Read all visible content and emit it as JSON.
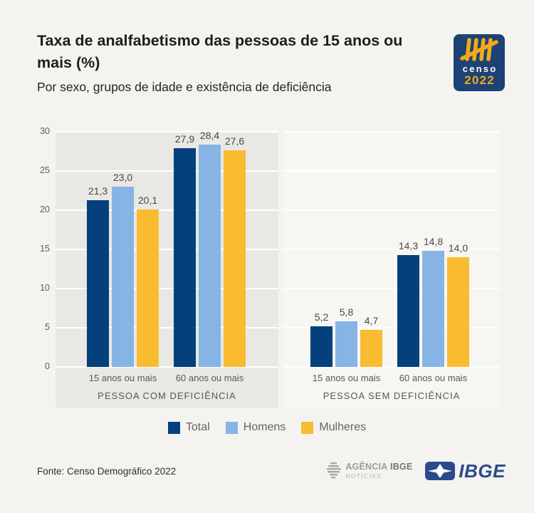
{
  "header": {
    "title": "Taxa de analfabetismo das pessoas de 15 anos ou mais (%)",
    "subtitle": "Por sexo, grupos de idade e existência de deficiência",
    "censo_logo": {
      "brand": "censo",
      "year": "2022"
    }
  },
  "chart_data": {
    "type": "bar",
    "title": "Taxa de analfabetismo das pessoas de 15 anos ou mais (%)",
    "subtitle": "Por sexo, grupos de idade e existência de deficiência",
    "unit": "%",
    "ylim": [
      0,
      30
    ],
    "yticks": [
      0,
      5,
      10,
      15,
      20,
      25,
      30
    ],
    "grid": true,
    "decimal_separator": ",",
    "legend_position": "bottom",
    "series_names": [
      "Total",
      "Homens",
      "Mulheres"
    ],
    "series_colors": [
      "#04407c",
      "#86b4e4",
      "#f9bc30"
    ],
    "panels": [
      {
        "label": "PESSOA COM DEFICIÊNCIA",
        "highlight": true,
        "categories": [
          "15 anos ou mais",
          "60 anos ou mais"
        ],
        "series": [
          {
            "name": "Total",
            "values": [
              21.3,
              27.9
            ]
          },
          {
            "name": "Homens",
            "values": [
              23.0,
              28.4
            ]
          },
          {
            "name": "Mulheres",
            "values": [
              20.1,
              27.6
            ]
          }
        ]
      },
      {
        "label": "PESSOA SEM DEFICIÊNCIA",
        "highlight": false,
        "categories": [
          "15 anos ou mais",
          "60 anos ou mais"
        ],
        "series": [
          {
            "name": "Total",
            "values": [
              5.2,
              14.3
            ]
          },
          {
            "name": "Homens",
            "values": [
              5.8,
              14.8
            ]
          },
          {
            "name": "Mulheres",
            "values": [
              4.7,
              14.0
            ]
          }
        ]
      }
    ]
  },
  "footer": {
    "source": "Fonte: Censo Demográfico 2022",
    "agencia_logo": {
      "title_regular": "AGÊNCIA",
      "title_bold": "IBGE",
      "subtitle": "NOTÍCIAS"
    },
    "ibge_logo_text": "IBGE"
  },
  "colors": {
    "page_bg": "#f4f3f0",
    "panel_highlight_bg": "#e9e8e5",
    "panel_plain_bg": "#f7f6f3",
    "gridline": "#ffffff",
    "total": "#04407c",
    "homens": "#86b4e4",
    "mulheres": "#f9bc30",
    "censo_navy": "#1d4274",
    "censo_yellow": "#f2a81d",
    "ibge_blue": "#2b4a8c"
  }
}
